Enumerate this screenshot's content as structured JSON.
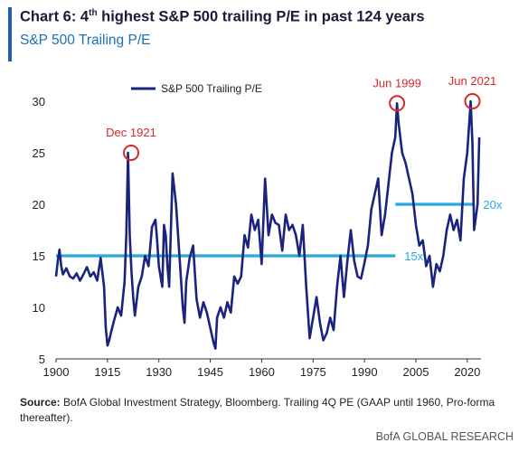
{
  "header": {
    "title_prefix": "Chart 6: 4",
    "title_sup": "th",
    "title_suffix": " highest S&P 500 trailing P/E in past 124 years",
    "subtitle": "S&P 500 Trailing P/E"
  },
  "footer": {
    "source_label": "Source:",
    "source_text": " BofA Global Investment Strategy, Bloomberg. Trailing 4Q PE (GAAP until 1960, Pro-forma thereafter).",
    "credit": "BofA GLOBAL RESEARCH"
  },
  "colors": {
    "series": "#1a237e",
    "reference": "#29a8e0",
    "annotation": "#d62828",
    "accent": "#1a5fb4"
  },
  "chart_data": {
    "type": "line",
    "xlim": [
      1900,
      2024
    ],
    "ylim": [
      5,
      30
    ],
    "x_ticks": [
      1900,
      1915,
      1930,
      1945,
      1960,
      1975,
      1990,
      2005,
      2020
    ],
    "y_ticks": [
      5,
      10,
      15,
      20,
      25,
      30
    ],
    "legend": "top-left",
    "grid": false,
    "series": [
      {
        "name": "S&P 500 Trailing P/E",
        "x": [
          1900,
          1900.5,
          1901,
          1901.5,
          1902,
          1903,
          1904,
          1905,
          1906,
          1907,
          1908,
          1909,
          1910,
          1911,
          1912,
          1913,
          1914,
          1914.5,
          1915,
          1915.5,
          1916,
          1917,
          1918,
          1919,
          1920,
          1920.5,
          1921,
          1921.5,
          1922,
          1922.5,
          1923,
          1924,
          1925,
          1926,
          1927,
          1928,
          1929,
          1929.5,
          1930,
          1931,
          1931.5,
          1932,
          1932.5,
          1933,
          1934,
          1935,
          1936,
          1937,
          1937.5,
          1938,
          1939,
          1940,
          1941,
          1942,
          1943,
          1944,
          1945,
          1946,
          1946.5,
          1947,
          1948,
          1949,
          1950,
          1951,
          1952,
          1953,
          1954,
          1955,
          1956,
          1957,
          1958,
          1959,
          1960,
          1961,
          1962,
          1963,
          1964,
          1965,
          1966,
          1967,
          1968,
          1969,
          1970,
          1971,
          1972,
          1973,
          1974,
          1975,
          1976,
          1977,
          1978,
          1979,
          1980,
          1981,
          1982,
          1983,
          1984,
          1985,
          1986,
          1987,
          1988,
          1989,
          1990,
          1991,
          1992,
          1993,
          1994,
          1995,
          1996,
          1997,
          1998,
          1999,
          1999.5,
          2000,
          2001,
          2002,
          2003,
          2004,
          2005,
          2006,
          2007,
          2008,
          2009,
          2010,
          2011,
          2012,
          2013,
          2014,
          2015,
          2016,
          2017,
          2018,
          2019,
          2020,
          2021,
          2021.5,
          2022,
          2023,
          2023.5
        ],
        "values": [
          13,
          14.5,
          15.6,
          14,
          13.2,
          13.8,
          13,
          12.8,
          13.3,
          12.6,
          13.2,
          13.9,
          13,
          13.4,
          12.6,
          14.8,
          12,
          8,
          6.3,
          6.8,
          7.5,
          8.8,
          10,
          9.2,
          12.5,
          17,
          25,
          17,
          13.5,
          11,
          9.2,
          12,
          13,
          15,
          14,
          17.8,
          18.5,
          16.5,
          14,
          12,
          18,
          17,
          14,
          12,
          23,
          20,
          15,
          10,
          8.5,
          12.5,
          14.8,
          16,
          10.8,
          9,
          10.5,
          9.5,
          8,
          6.5,
          6,
          9,
          10,
          9,
          10.5,
          9.5,
          13,
          12.3,
          13,
          17,
          15.8,
          19,
          17.5,
          18.5,
          14.2,
          22.5,
          17,
          19,
          18.2,
          18,
          15.5,
          19,
          17.5,
          18,
          17,
          15,
          18,
          12,
          7,
          9,
          11,
          8.5,
          6.8,
          7.5,
          9,
          7.8,
          12,
          15,
          11,
          14.5,
          17.5,
          14.5,
          13,
          12.8,
          14.3,
          16,
          19.5,
          21,
          22.5,
          17,
          19,
          22,
          25,
          26.5,
          29.8,
          27.8,
          25,
          24,
          22.5,
          21,
          18,
          16,
          16.5,
          14,
          15,
          12,
          14.2,
          13.5,
          15,
          17.5,
          19,
          17.5,
          18.5,
          16.5,
          22.5,
          25,
          30,
          26,
          17.5,
          20,
          26.5
        ]
      }
    ],
    "reference_lines": [
      {
        "label": "15x",
        "y": 15,
        "x_start": 1900,
        "x_end": 1999
      },
      {
        "label": "20x",
        "y": 20,
        "x_start": 1999,
        "x_end": 2022
      }
    ],
    "annotations": [
      {
        "label": "Dec 1921",
        "x": 1921.9,
        "y": 25
      },
      {
        "label": "Jun 1999",
        "x": 1999.5,
        "y": 29.8
      },
      {
        "label": "Jun 2021",
        "x": 2021.5,
        "y": 30
      }
    ]
  }
}
